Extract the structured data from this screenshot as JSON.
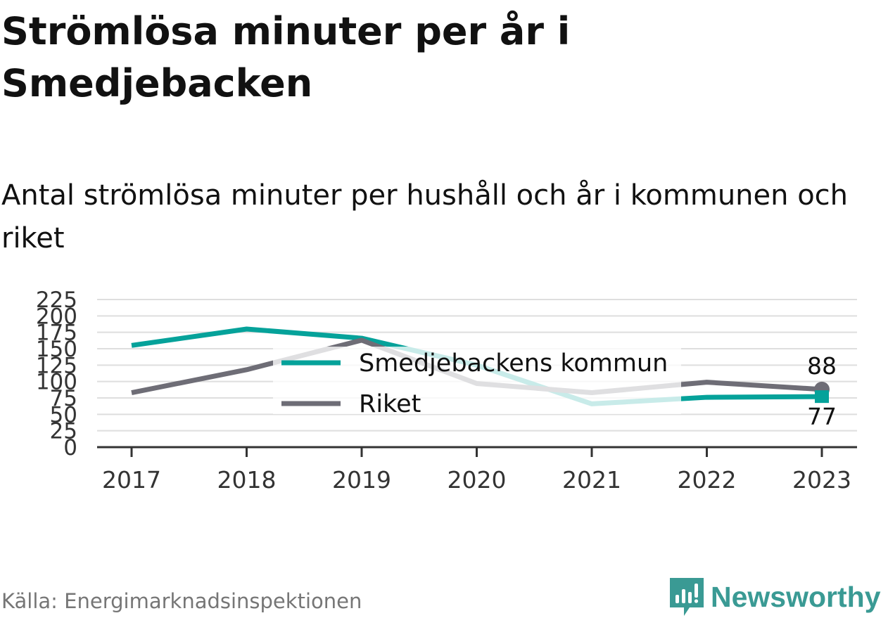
{
  "header": {
    "title": "Strömlösa minuter per år i Smedjebacken",
    "subtitle": "Antal strömlösa minuter per hushåll och år i kommunen och riket"
  },
  "footer": {
    "source": "Källa: Energimarknadsinspektionen",
    "brand": "Newsworthy"
  },
  "colors": {
    "smedjebacken": "#05a29a",
    "riket": "#6e6d76",
    "grid": "#dedede",
    "axis": "#333333",
    "brand": "#3a9a94"
  },
  "chart_data": {
    "type": "line",
    "x": [
      "2017",
      "2018",
      "2019",
      "2020",
      "2021",
      "2022",
      "2023"
    ],
    "yticks": [
      "0",
      "25",
      "50",
      "75",
      "100",
      "125",
      "150",
      "175",
      "200",
      "225"
    ],
    "ylim": [
      0,
      225
    ],
    "grid": true,
    "legend_position": "center",
    "series": [
      {
        "name": "Smedjebackens kommun",
        "color": "#05a29a",
        "values": [
          155,
          180,
          166,
          125,
          66,
          76,
          77
        ],
        "end_label": "77"
      },
      {
        "name": "Riket",
        "color": "#6e6d76",
        "values": [
          83,
          118,
          163,
          97,
          83,
          99,
          88
        ],
        "end_label": "88"
      }
    ]
  }
}
